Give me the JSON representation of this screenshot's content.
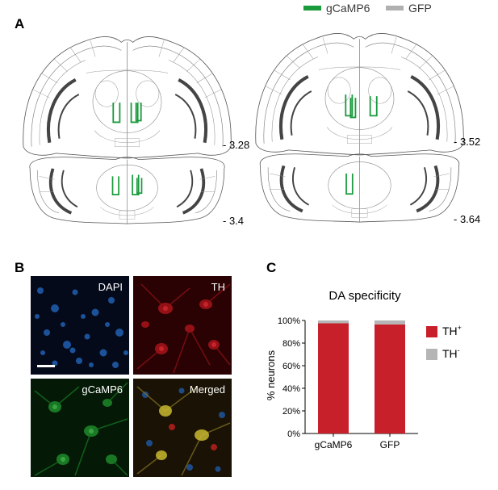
{
  "figure": {
    "panel_a": {
      "letter": "A",
      "legend": [
        {
          "label": "gCaMP6",
          "color": "#1a9a3c"
        },
        {
          "label": "GFP",
          "color": "#b0b0b0"
        }
      ],
      "coordinates": [
        "- 3.28",
        "- 3.52",
        "- 3.4",
        "- 3.64"
      ]
    },
    "panel_b": {
      "letter": "B",
      "images": [
        {
          "label": "DAPI",
          "channel": "blue"
        },
        {
          "label": "TH",
          "channel": "red"
        },
        {
          "label": "gCaMP6",
          "channel": "green"
        },
        {
          "label": "Merged",
          "channel": "merged"
        }
      ]
    },
    "panel_c": {
      "letter": "C",
      "colors": {
        "th_plus": "#c8202a",
        "th_minus": "#b5b5b5"
      }
    }
  },
  "chart_data": {
    "type": "bar",
    "stacked": true,
    "title": "DA specificity",
    "categories": [
      "gCaMP6",
      "GFP"
    ],
    "ylabel": "% neurons",
    "ylim": [
      0,
      100
    ],
    "yticks": [
      "0%",
      "20%",
      "40%",
      "60%",
      "80%",
      "100%"
    ],
    "series": [
      {
        "name": "TH+",
        "label_base": "TH",
        "label_sup": "+",
        "values": [
          97.5,
          96.5
        ],
        "color": "#c8202a"
      },
      {
        "name": "TH-",
        "label_base": "TH",
        "label_sup": "-",
        "values": [
          2.5,
          3.5
        ],
        "color": "#b5b5b5"
      }
    ],
    "legend": "right"
  }
}
